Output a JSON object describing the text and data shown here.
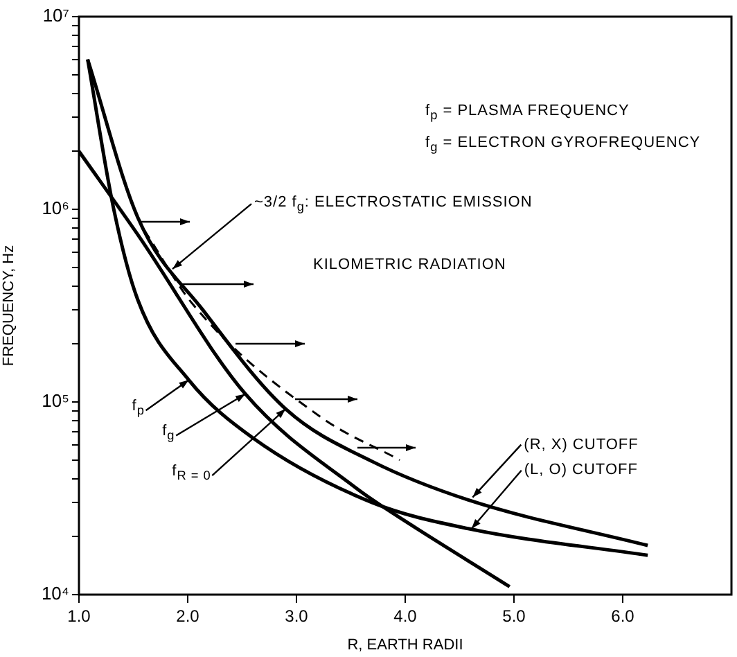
{
  "chart_data": {
    "type": "line",
    "xlabel": "R, EARTH RADII",
    "ylabel": "FREQUENCY, Hz",
    "log": "y",
    "grid": false,
    "legend": false,
    "marker": "none",
    "xlim": [
      1,
      7
    ],
    "xticks": [
      {
        "value": 1,
        "label": "1.0"
      },
      {
        "value": 2,
        "label": "2.0"
      },
      {
        "value": 3,
        "label": "3.0"
      },
      {
        "value": 4,
        "label": "4.0"
      },
      {
        "value": 5,
        "label": "5.0"
      },
      {
        "value": 6,
        "label": "6.0"
      }
    ],
    "ylim": [
      10000,
      10000000
    ],
    "yticks": [
      {
        "value": 10000,
        "label": "10⁴"
      },
      {
        "value": 20000,
        "label": null
      },
      {
        "value": 30000,
        "label": null
      },
      {
        "value": 40000,
        "label": null
      },
      {
        "value": 50000,
        "label": null
      },
      {
        "value": 60000,
        "label": null
      },
      {
        "value": 70000,
        "label": null
      },
      {
        "value": 80000,
        "label": null
      },
      {
        "value": 90000,
        "label": null
      },
      {
        "value": 100000,
        "label": "10⁵"
      },
      {
        "value": 200000,
        "label": null
      },
      {
        "value": 300000,
        "label": null
      },
      {
        "value": 400000,
        "label": null
      },
      {
        "value": 500000,
        "label": null
      },
      {
        "value": 600000,
        "label": null
      },
      {
        "value": 700000,
        "label": null
      },
      {
        "value": 800000,
        "label": null
      },
      {
        "value": 900000,
        "label": null
      },
      {
        "value": 1000000,
        "label": "10⁶"
      },
      {
        "value": 2000000,
        "label": null
      },
      {
        "value": 3000000,
        "label": null
      },
      {
        "value": 4000000,
        "label": null
      },
      {
        "value": 5000000,
        "label": null
      },
      {
        "value": 6000000,
        "label": null
      },
      {
        "value": 7000000,
        "label": null
      },
      {
        "value": 8000000,
        "label": null
      },
      {
        "value": 9000000,
        "label": null
      },
      {
        "value": 10000000,
        "label": "10⁷"
      }
    ],
    "series": [
      {
        "color": "#000000",
        "line_style": "solid",
        "x": [
          1.08,
          1.32,
          1.54,
          2.01,
          2.6,
          3.7,
          4.58,
          6.23
        ],
        "values": [
          6000000,
          1000000,
          340000,
          130000,
          65000,
          30000,
          22000,
          16000
        ]
      },
      {
        "color": "#000000",
        "line_style": "solid",
        "x": [
          1.08,
          1.54,
          2.14,
          2.91,
          3.7,
          4.58,
          6.23
        ],
        "values": [
          6000000,
          910000,
          300000,
          91000,
          49000,
          31000,
          18000
        ]
      },
      {
        "color": "#000000",
        "line_style": "solid",
        "x": [
          1.0,
          1.54,
          2.53,
          3.57,
          3.82,
          4.96
        ],
        "values": [
          2000000,
          740000,
          110000,
          35000,
          28000,
          11000
        ]
      },
      {
        "color": "#000000",
        "line_style": "dashed",
        "x": [
          1.6,
          2.05,
          3.23,
          3.95
        ],
        "values": [
          780000,
          320000,
          83000,
          50000
        ]
      }
    ],
    "annotations": [
      "f$_{p}$ = PLASMA FREQUENCY",
      "f$_{g}$ = ELECTRON GYROFREQUENCY",
      {
        "text": "~3/2 f$_{g}$: ELECTROSTATIC EMISSION",
        "x": 1.86,
        "y": 490000
      },
      "KILOMETRIC RADIATION",
      {
        "text": "f$_{p}$",
        "x": 2.01,
        "y": 130000
      },
      {
        "text": "f$_{g}$",
        "x": 2.53,
        "y": 110000
      },
      {
        "text": "f$_{R = 0}$",
        "x": 2.9,
        "y": 92000
      },
      {
        "text": "(R, X) CUTOFF",
        "x": 4.62,
        "y": 32000
      },
      {
        "text": "(L, O) CUTOFF",
        "x": 4.61,
        "y": 22000
      }
    ]
  }
}
